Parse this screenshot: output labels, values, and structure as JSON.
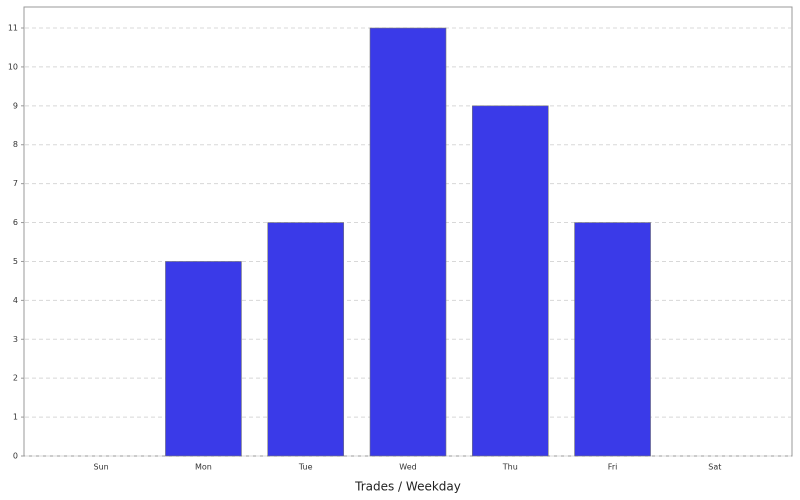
{
  "chart_data": {
    "type": "bar",
    "x_label": "Trades / Weekday",
    "categories": [
      "Sun",
      "Mon",
      "Tue",
      "Wed",
      "Thu",
      "Fri",
      "Sat"
    ],
    "values": [
      0,
      5,
      6,
      11,
      9,
      6,
      0
    ],
    "color": "#3a3ae8",
    "ylim": [
      0,
      11.54
    ],
    "yticks": [
      0,
      1,
      2,
      3,
      4,
      5,
      6,
      7,
      8,
      9,
      10,
      11
    ],
    "grid": true
  }
}
